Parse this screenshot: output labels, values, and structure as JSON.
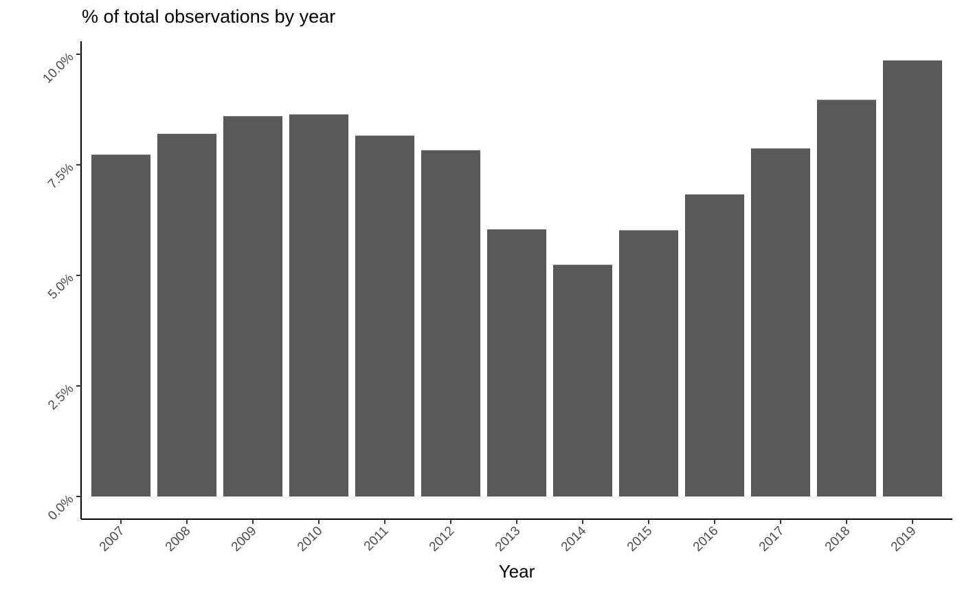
{
  "chart_data": {
    "type": "bar",
    "title": "% of total observations by year",
    "xlabel": "Year",
    "ylabel": "",
    "categories": [
      "2007",
      "2008",
      "2009",
      "2010",
      "2011",
      "2012",
      "2013",
      "2014",
      "2015",
      "2016",
      "2017",
      "2018",
      "2019"
    ],
    "values": [
      7.73,
      8.2,
      8.6,
      8.64,
      8.16,
      7.83,
      6.04,
      5.24,
      6.02,
      6.83,
      7.87,
      8.97,
      9.86
    ],
    "y_unit": "%",
    "ylim": [
      0,
      10
    ],
    "y_ticks": [
      0,
      2.5,
      5,
      7.5,
      10
    ],
    "y_tick_labels": [
      "0.0%",
      "2.5%",
      "5.0%",
      "7.5%",
      "10.0%"
    ],
    "grid": false,
    "legend": "none",
    "bar_color": "#595959"
  }
}
